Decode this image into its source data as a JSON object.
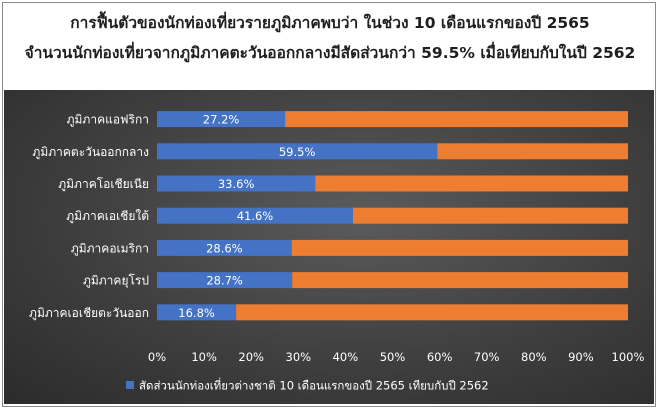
{
  "chart_data": {
    "type": "bar",
    "orientation": "horizontal",
    "stacked": "percent",
    "title": "การฟื้นตัวของนักท่องเที่ยวรายภูมิภาคพบว่า ในช่วง 10 เดือนแรกของปี 2565",
    "subtitle": "จำนวนนักท่องเที่ยวจากภูมิภาคตะวันออกกลางมีสัดส่วนกว่า 59.5% เมื่อเทียบกับในปี 2562",
    "categories": [
      "ภูมิภาคแอฟริกา",
      "ภูมิภาคตะวันออกกลาง",
      "ภูมิภาคโอเชียเนีย",
      "ภูมิภาคเอเชียใต้",
      "ภูมิภาคอเมริกา",
      "ภูมิภาคยุโรป",
      "ภูมิภาคเอเชียตะวันออก"
    ],
    "series": [
      {
        "name": "สัดส่วนนักท่องเที่ยวต่างชาติ 10 เดือนแรกของปี 2565 เทียบกับปี 2562",
        "values": [
          27.2,
          59.5,
          33.6,
          41.6,
          28.6,
          28.7,
          16.8
        ],
        "labels": [
          "27.2%",
          "59.5%",
          "33.6%",
          "41.6%",
          "28.6%",
          "28.7%",
          "16.8%"
        ],
        "color": "#4472c4"
      },
      {
        "name": "",
        "values": [
          72.8,
          40.5,
          66.4,
          58.4,
          71.4,
          71.3,
          83.2
        ],
        "color": "#ed7d31"
      }
    ],
    "xlim": [
      0,
      100
    ],
    "xticks": [
      0,
      10,
      20,
      30,
      40,
      50,
      60,
      70,
      80,
      90,
      100
    ],
    "xtick_labels": [
      "0%",
      "10%",
      "20%",
      "30%",
      "40%",
      "50%",
      "60%",
      "70%",
      "80%",
      "90%",
      "100%"
    ],
    "legend_position": "bottom",
    "grid": false,
    "background": "#444444"
  }
}
